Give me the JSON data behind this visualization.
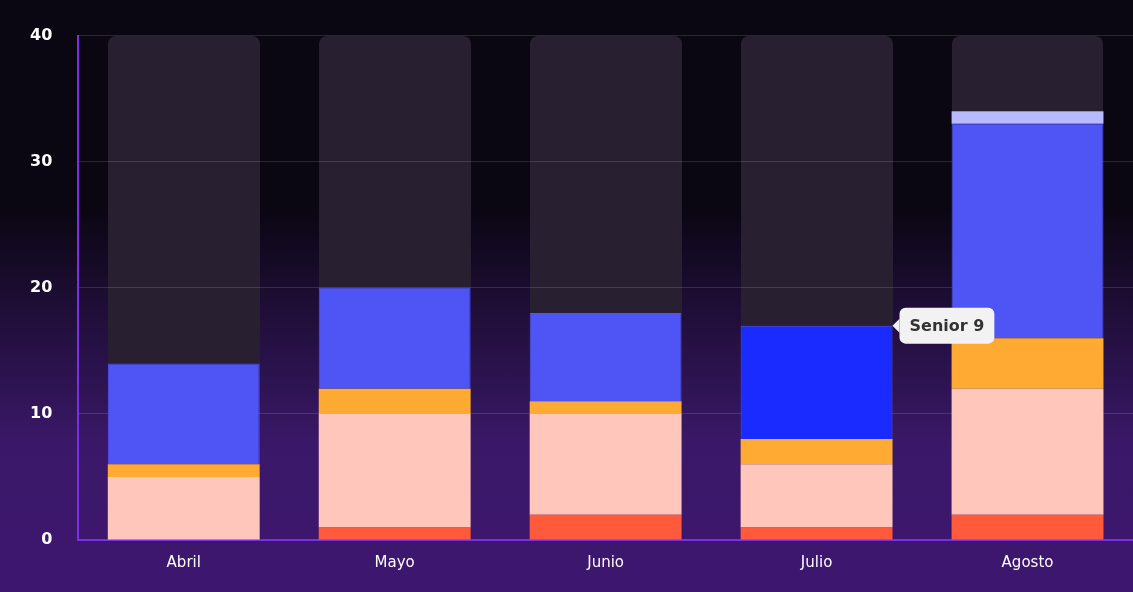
{
  "chart_data": {
    "type": "bar",
    "stacked": true,
    "categories": [
      "Abril",
      "Mayo",
      "Junio",
      "Julio",
      "Agosto"
    ],
    "series": [
      {
        "color": "#ff5a3c",
        "values": [
          0,
          1,
          2,
          1,
          2
        ]
      },
      {
        "color": "#ffc7bb",
        "values": [
          5,
          9,
          8,
          5,
          10
        ]
      },
      {
        "color": "#ffaa33",
        "values": [
          1,
          2,
          1,
          2,
          4
        ]
      },
      {
        "color": "#4f55f5",
        "colors": [
          "#4f55f5",
          "#4f55f5",
          "#4f55f5",
          "#1a2bff",
          "#4f55f5"
        ],
        "values": [
          8,
          8,
          7,
          9,
          17
        ]
      },
      {
        "color": "#b8baff",
        "values": [
          0,
          0,
          0,
          0,
          1
        ]
      }
    ],
    "ylim": [
      0,
      40
    ],
    "yticks": [
      0,
      10,
      20,
      30,
      40
    ],
    "grid": "y",
    "legend": false,
    "annotations": [
      "Senior 9"
    ]
  }
}
